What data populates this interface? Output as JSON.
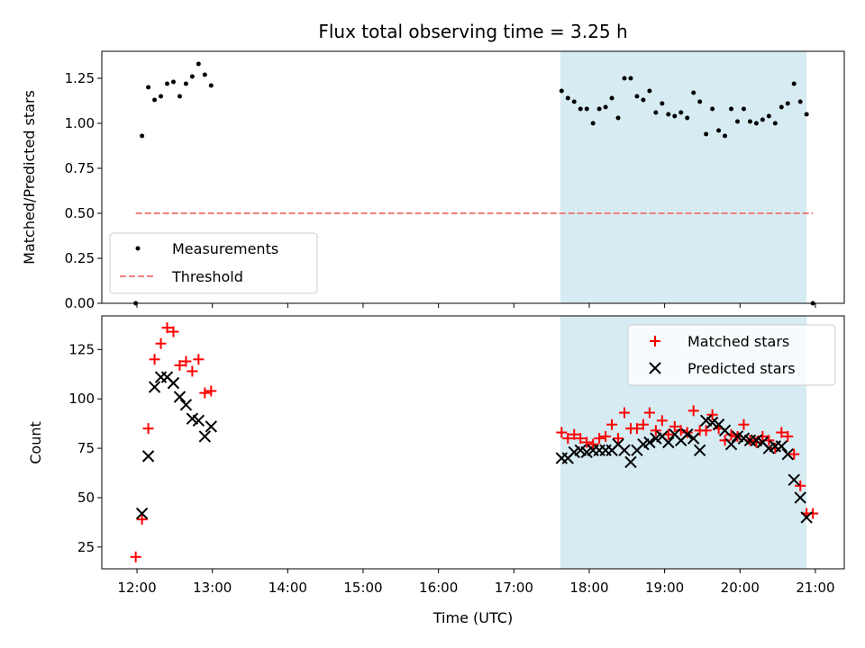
{
  "title": "Flux total observing time = 3.25 h",
  "xlabel": "Time (UTC)",
  "x_ticks": [
    "12:00",
    "13:00",
    "14:00",
    "15:00",
    "16:00",
    "17:00",
    "18:00",
    "19:00",
    "20:00",
    "21:00"
  ],
  "colors": {
    "measurement": "#000000",
    "threshold": "#f08080",
    "matched": "#ff0000",
    "predicted": "#000000",
    "highlight": "#add8e6"
  },
  "chart_data": [
    {
      "type": "scatter",
      "ylabel": "Matched/Predicted stars",
      "xlim": [
        "11:32",
        "21:23"
      ],
      "ylim": [
        0,
        1.4
      ],
      "y_ticks": [
        "0.00",
        "0.25",
        "0.50",
        "0.75",
        "1.00",
        "1.25"
      ],
      "highlight_span": [
        "17:37",
        "20:53"
      ],
      "legend_position": "lower-left",
      "series": [
        {
          "name": "Measurements",
          "marker": "dot",
          "points": [
            [
              "11:59",
              0.0
            ],
            [
              "12:04",
              0.93
            ],
            [
              "12:09",
              1.2
            ],
            [
              "12:14",
              1.13
            ],
            [
              "12:19",
              1.15
            ],
            [
              "12:24",
              1.22
            ],
            [
              "12:29",
              1.23
            ],
            [
              "12:34",
              1.15
            ],
            [
              "12:39",
              1.22
            ],
            [
              "12:44",
              1.26
            ],
            [
              "12:49",
              1.33
            ],
            [
              "12:54",
              1.27
            ],
            [
              "12:59",
              1.21
            ],
            [
              "17:38",
              1.18
            ],
            [
              "17:43",
              1.14
            ],
            [
              "17:48",
              1.12
            ],
            [
              "17:53",
              1.08
            ],
            [
              "17:58",
              1.08
            ],
            [
              "18:03",
              1.0
            ],
            [
              "18:08",
              1.08
            ],
            [
              "18:13",
              1.09
            ],
            [
              "18:18",
              1.14
            ],
            [
              "18:23",
              1.03
            ],
            [
              "18:28",
              1.25
            ],
            [
              "18:33",
              1.25
            ],
            [
              "18:38",
              1.15
            ],
            [
              "18:43",
              1.13
            ],
            [
              "18:48",
              1.18
            ],
            [
              "18:53",
              1.06
            ],
            [
              "18:58",
              1.11
            ],
            [
              "19:03",
              1.05
            ],
            [
              "19:08",
              1.04
            ],
            [
              "19:13",
              1.06
            ],
            [
              "19:18",
              1.03
            ],
            [
              "19:23",
              1.17
            ],
            [
              "19:28",
              1.12
            ],
            [
              "19:33",
              0.94
            ],
            [
              "19:38",
              1.08
            ],
            [
              "19:43",
              0.96
            ],
            [
              "19:48",
              0.93
            ],
            [
              "19:53",
              1.08
            ],
            [
              "19:58",
              1.01
            ],
            [
              "20:03",
              1.08
            ],
            [
              "20:08",
              1.01
            ],
            [
              "20:13",
              1.0
            ],
            [
              "20:18",
              1.02
            ],
            [
              "20:23",
              1.04
            ],
            [
              "20:28",
              1.0
            ],
            [
              "20:33",
              1.09
            ],
            [
              "20:38",
              1.11
            ],
            [
              "20:43",
              1.22
            ],
            [
              "20:48",
              1.12
            ],
            [
              "20:53",
              1.05
            ],
            [
              "20:58",
              0.0
            ]
          ]
        },
        {
          "name": "Threshold",
          "type": "line",
          "style": "dashed",
          "points": [
            [
              "11:59",
              0.5
            ],
            [
              "20:58",
              0.5
            ]
          ]
        }
      ]
    },
    {
      "type": "scatter",
      "ylabel": "Count",
      "xlim": [
        "11:32",
        "21:23"
      ],
      "ylim": [
        14,
        142
      ],
      "y_ticks": [
        "25",
        "50",
        "75",
        "100",
        "125"
      ],
      "highlight_span": [
        "17:37",
        "20:53"
      ],
      "legend_position": "upper-right",
      "series": [
        {
          "name": "Matched stars",
          "marker": "plus",
          "points": [
            [
              "11:59",
              20
            ],
            [
              "12:04",
              39
            ],
            [
              "12:09",
              85
            ],
            [
              "12:14",
              120
            ],
            [
              "12:19",
              128
            ],
            [
              "12:24",
              136
            ],
            [
              "12:29",
              134
            ],
            [
              "12:34",
              117
            ],
            [
              "12:39",
              119
            ],
            [
              "12:44",
              114
            ],
            [
              "12:49",
              120
            ],
            [
              "12:54",
              103
            ],
            [
              "12:59",
              104
            ],
            [
              "17:38",
              83
            ],
            [
              "17:43",
              80
            ],
            [
              "17:48",
              82
            ],
            [
              "17:53",
              80
            ],
            [
              "17:58",
              78
            ],
            [
              "18:03",
              77
            ],
            [
              "18:08",
              80
            ],
            [
              "18:13",
              81
            ],
            [
              "18:18",
              87
            ],
            [
              "18:23",
              80
            ],
            [
              "18:28",
              93
            ],
            [
              "18:33",
              85
            ],
            [
              "18:38",
              85
            ],
            [
              "18:43",
              87
            ],
            [
              "18:48",
              93
            ],
            [
              "18:53",
              84
            ],
            [
              "18:58",
              89
            ],
            [
              "19:03",
              82
            ],
            [
              "19:08",
              86
            ],
            [
              "19:13",
              84
            ],
            [
              "19:18",
              83
            ],
            [
              "19:23",
              94
            ],
            [
              "19:28",
              84
            ],
            [
              "19:33",
              84
            ],
            [
              "19:38",
              92
            ],
            [
              "19:43",
              85
            ],
            [
              "19:48",
              79
            ],
            [
              "19:53",
              82
            ],
            [
              "19:58",
              81
            ],
            [
              "20:03",
              87
            ],
            [
              "20:08",
              79
            ],
            [
              "20:13",
              78
            ],
            [
              "20:18",
              81
            ],
            [
              "20:23",
              79
            ],
            [
              "20:28",
              75
            ],
            [
              "20:33",
              83
            ],
            [
              "20:38",
              81
            ],
            [
              "20:43",
              72
            ],
            [
              "20:48",
              56
            ],
            [
              "20:53",
              42
            ],
            [
              "20:58",
              42
            ]
          ]
        },
        {
          "name": "Predicted stars",
          "marker": "x",
          "points": [
            [
              "12:04",
              42
            ],
            [
              "12:09",
              71
            ],
            [
              "12:14",
              106
            ],
            [
              "12:19",
              111
            ],
            [
              "12:24",
              111
            ],
            [
              "12:29",
              108
            ],
            [
              "12:34",
              101
            ],
            [
              "12:39",
              97
            ],
            [
              "12:44",
              90
            ],
            [
              "12:49",
              89
            ],
            [
              "12:54",
              81
            ],
            [
              "12:59",
              86
            ],
            [
              "17:38",
              70
            ],
            [
              "17:43",
              70
            ],
            [
              "17:48",
              73
            ],
            [
              "17:53",
              74
            ],
            [
              "17:58",
              73
            ],
            [
              "18:03",
              74
            ],
            [
              "18:08",
              74
            ],
            [
              "18:13",
              74
            ],
            [
              "18:18",
              74
            ],
            [
              "18:23",
              77
            ],
            [
              "18:28",
              74
            ],
            [
              "18:33",
              68
            ],
            [
              "18:38",
              74
            ],
            [
              "18:43",
              77
            ],
            [
              "18:48",
              78
            ],
            [
              "18:53",
              80
            ],
            [
              "18:58",
              81
            ],
            [
              "19:03",
              78
            ],
            [
              "19:08",
              82
            ],
            [
              "19:13",
              79
            ],
            [
              "19:18",
              82
            ],
            [
              "19:23",
              80
            ],
            [
              "19:28",
              74
            ],
            [
              "19:33",
              89
            ],
            [
              "19:38",
              88
            ],
            [
              "19:43",
              87
            ],
            [
              "19:48",
              84
            ],
            [
              "19:53",
              77
            ],
            [
              "19:58",
              81
            ],
            [
              "20:03",
              80
            ],
            [
              "20:08",
              79
            ],
            [
              "20:13",
              79
            ],
            [
              "20:18",
              78
            ],
            [
              "20:23",
              75
            ],
            [
              "20:28",
              76
            ],
            [
              "20:33",
              76
            ],
            [
              "20:38",
              72
            ],
            [
              "20:43",
              59
            ],
            [
              "20:48",
              50
            ],
            [
              "20:53",
              40
            ]
          ]
        }
      ]
    }
  ]
}
